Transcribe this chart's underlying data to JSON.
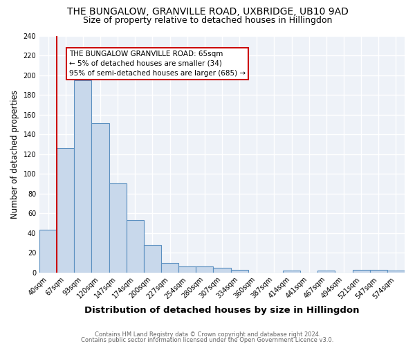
{
  "title": "THE BUNGALOW, GRANVILLE ROAD, UXBRIDGE, UB10 9AD",
  "subtitle": "Size of property relative to detached houses in Hillingdon",
  "xlabel": "Distribution of detached houses by size in Hillingdon",
  "ylabel": "Number of detached properties",
  "categories": [
    "40sqm",
    "67sqm",
    "93sqm",
    "120sqm",
    "147sqm",
    "174sqm",
    "200sqm",
    "227sqm",
    "254sqm",
    "280sqm",
    "307sqm",
    "334sqm",
    "360sqm",
    "387sqm",
    "414sqm",
    "441sqm",
    "467sqm",
    "494sqm",
    "521sqm",
    "547sqm",
    "574sqm"
  ],
  "values": [
    43,
    126,
    195,
    151,
    90,
    53,
    28,
    10,
    6,
    6,
    5,
    3,
    0,
    0,
    2,
    0,
    2,
    0,
    3,
    3,
    2
  ],
  "bar_color": "#c8d8eb",
  "bar_edge_color": "#5a8fc0",
  "red_line_x": 0.5,
  "annotation_text": "THE BUNGALOW GRANVILLE ROAD: 65sqm\n← 5% of detached houses are smaller (34)\n95% of semi-detached houses are larger (685) →",
  "annotation_box_color": "white",
  "annotation_box_edge_color": "#cc0000",
  "red_line_color": "#cc0000",
  "footer1": "Contains HM Land Registry data © Crown copyright and database right 2024.",
  "footer2": "Contains public sector information licensed under the Open Government Licence v3.0.",
  "ylim": [
    0,
    240
  ],
  "yticks": [
    0,
    20,
    40,
    60,
    80,
    100,
    120,
    140,
    160,
    180,
    200,
    220,
    240
  ],
  "background_color": "#ffffff",
  "plot_background_color": "#eef2f8",
  "grid_color": "#ffffff",
  "title_fontsize": 10,
  "subtitle_fontsize": 9,
  "xlabel_fontsize": 9.5,
  "ylabel_fontsize": 8.5,
  "tick_fontsize": 7,
  "annotation_fontsize": 7.5,
  "footer_fontsize": 6
}
